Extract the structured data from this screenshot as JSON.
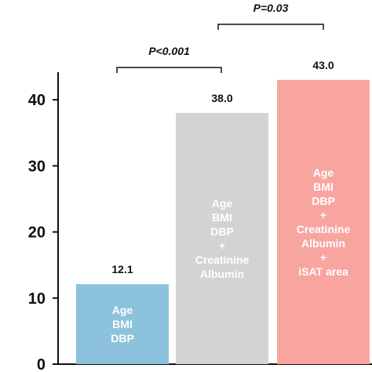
{
  "chart_data": {
    "type": "bar",
    "categories": [
      "Age BMI DBP",
      "Age BMI DBP + Creatinine Albumin",
      "Age BMI DBP + Creatinine Albumin + iSAT area"
    ],
    "values": [
      12.1,
      38.0,
      43.0
    ],
    "value_labels": [
      "12.1",
      "38.0",
      "43.0"
    ],
    "bar_text": [
      [
        "Age",
        "BMI",
        "DBP"
      ],
      [
        "Age",
        "BMI",
        "DBP",
        "+",
        "Creatinine",
        "Albumin"
      ],
      [
        "Age",
        "BMI",
        "DBP",
        "+",
        "Creatinine",
        "Albumin",
        "+",
        "iSAT area"
      ]
    ],
    "colors": [
      "#8dc2dc",
      "#d3d3d3",
      "#f8a5a0"
    ],
    "ylim": [
      0,
      45
    ],
    "yticks": [
      0,
      10,
      20,
      30,
      40
    ],
    "ytick_labels": [
      "0",
      "10",
      "20",
      "30",
      "40"
    ],
    "title": "",
    "xlabel": "",
    "ylabel": "",
    "grid": false,
    "annotations": [
      {
        "text": "P<0.001",
        "from": 0,
        "to": 1
      },
      {
        "text": "P=0.03",
        "from": 1,
        "to": 2
      }
    ]
  }
}
